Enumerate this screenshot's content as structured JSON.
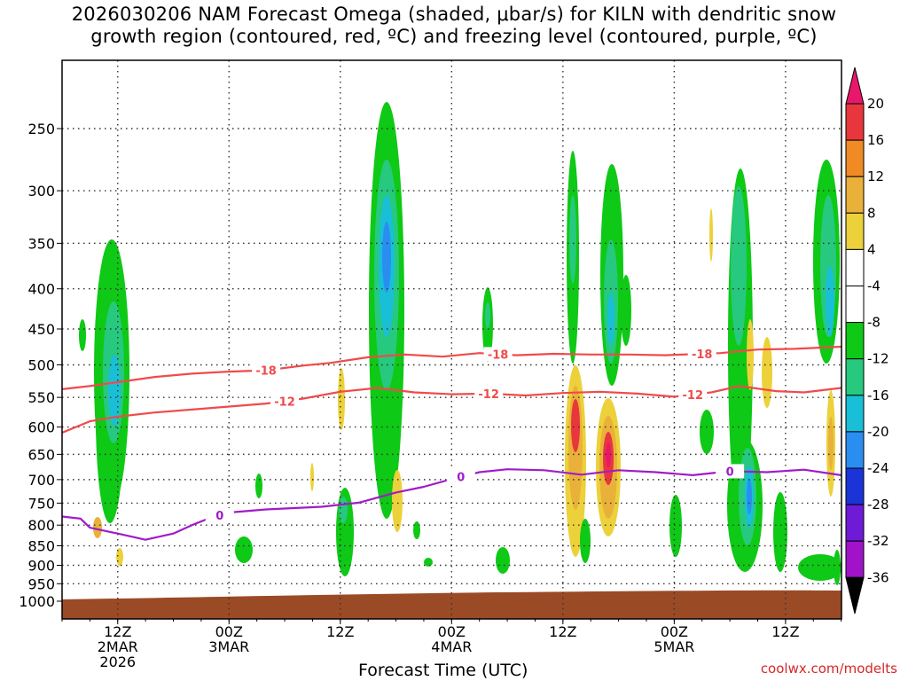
{
  "title": "2026030206 NAM Forecast Omega (shaded, μbar/s) for KILN with dendritic snow\ngrowth region (contoured, red, ºC) and freezing level (contoured, purple, ºC)",
  "xlabel": "Forecast Time (UTC)",
  "credit": "coolwx.com/modelts",
  "chart_data": {
    "type": "heatmap",
    "title": "2026030206 NAM Forecast Omega (shaded, μbar/s) for KILN with dendritic snow growth region (contoured, red, ºC) and freezing level (contoured, purple, ºC)",
    "xlabel": "Forecast Time (UTC)",
    "ylabel": "",
    "y_scale": "log-pressure",
    "ylim": [
      1000,
      200
    ],
    "xlim_hours": [
      0,
      84
    ],
    "grid": true,
    "y_ticks": [
      250,
      300,
      350,
      400,
      450,
      500,
      550,
      600,
      650,
      700,
      750,
      800,
      850,
      900,
      950,
      1000
    ],
    "x_ticks": [
      {
        "hour": 6,
        "lines": [
          "12Z",
          "2MAR",
          "2026"
        ]
      },
      {
        "hour": 18,
        "lines": [
          "00Z",
          "3MAR"
        ]
      },
      {
        "hour": 30,
        "lines": [
          "12Z"
        ]
      },
      {
        "hour": 42,
        "lines": [
          "00Z",
          "4MAR"
        ]
      },
      {
        "hour": 54,
        "lines": [
          "12Z"
        ]
      },
      {
        "hour": 66,
        "lines": [
          "00Z",
          "5MAR"
        ]
      },
      {
        "hour": 78,
        "lines": [
          "12Z"
        ]
      }
    ],
    "colorbar": {
      "labels": [
        "20",
        "16",
        "12",
        "8",
        "4",
        "-4",
        "-8",
        "-12",
        "-16",
        "-20",
        "-24",
        "-28",
        "-32",
        "-36"
      ],
      "colors": [
        "#e8176b",
        "#e8373c",
        "#f08a24",
        "#e9b13a",
        "#ecd13a",
        "#ffffff",
        "#ffffff",
        "#0ec915",
        "#26c97e",
        "#19bfd6",
        "#2a8ef0",
        "#1a34d8",
        "#6f1ad6",
        "#a013c9",
        "#9a9a9a",
        "#000000"
      ]
    },
    "series": [
      {
        "name": "-18",
        "color": "#f04a4a",
        "points": [
          [
            0,
            537
          ],
          [
            3,
            532
          ],
          [
            6,
            526
          ],
          [
            10,
            518
          ],
          [
            14,
            513
          ],
          [
            18,
            510
          ],
          [
            22,
            508
          ],
          [
            26,
            501
          ],
          [
            29,
            497
          ],
          [
            33,
            489
          ],
          [
            37,
            485
          ],
          [
            41,
            488
          ],
          [
            45,
            483
          ],
          [
            49,
            486
          ],
          [
            53,
            484
          ],
          [
            57,
            485
          ],
          [
            61,
            485
          ],
          [
            65,
            486
          ],
          [
            69,
            484
          ],
          [
            71,
            483
          ],
          [
            75,
            478
          ],
          [
            79,
            477
          ],
          [
            84,
            474
          ]
        ]
      },
      {
        "name": "-12",
        "color": "#f04a4a",
        "points": [
          [
            0,
            610
          ],
          [
            3,
            590
          ],
          [
            6,
            582
          ],
          [
            10,
            575
          ],
          [
            14,
            570
          ],
          [
            18,
            565
          ],
          [
            22,
            560
          ],
          [
            26,
            552
          ],
          [
            30,
            541
          ],
          [
            34,
            535
          ],
          [
            38,
            542
          ],
          [
            42,
            545
          ],
          [
            46,
            544
          ],
          [
            50,
            547
          ],
          [
            54,
            543
          ],
          [
            58,
            541
          ],
          [
            62,
            544
          ],
          [
            66,
            549
          ],
          [
            70,
            542
          ],
          [
            73,
            532
          ],
          [
            77,
            540
          ],
          [
            80,
            542
          ],
          [
            84,
            535
          ]
        ]
      },
      {
        "name": "0",
        "color": "#a01cc9",
        "points": [
          [
            0,
            780
          ],
          [
            2,
            785
          ],
          [
            3,
            806
          ],
          [
            6,
            820
          ],
          [
            9,
            835
          ],
          [
            12,
            820
          ],
          [
            14,
            800
          ],
          [
            16,
            783
          ],
          [
            18,
            771
          ],
          [
            22,
            764
          ],
          [
            25,
            761
          ],
          [
            28,
            758
          ],
          [
            32,
            749
          ],
          [
            36,
            727
          ],
          [
            39,
            715
          ],
          [
            42,
            699
          ],
          [
            45,
            685
          ],
          [
            48,
            679
          ],
          [
            52,
            681
          ],
          [
            56,
            690
          ],
          [
            60,
            681
          ],
          [
            64,
            685
          ],
          [
            68,
            691
          ],
          [
            72,
            683
          ],
          [
            76,
            685
          ],
          [
            80,
            680
          ],
          [
            84,
            691
          ]
        ]
      }
    ]
  }
}
